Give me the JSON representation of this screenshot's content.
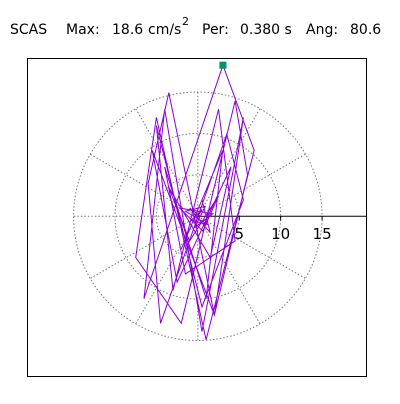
{
  "chart_data": {
    "type": "hodogram",
    "header": {
      "station": "SCAS",
      "max_label": "Max:",
      "max_value": "18.6",
      "max_unit": "cm/s",
      "max_unit_exp": "2",
      "period_label": "Per:",
      "period_value": "0.380 s",
      "angle_label": "Ang:",
      "angle_value": "80.6"
    },
    "xlim": [
      -20.5,
      20.3
    ],
    "ylim": [
      -19.4,
      19.1
    ],
    "rticks": [
      5,
      10,
      15
    ],
    "angle_grid": [
      30,
      60,
      90,
      120,
      150,
      180,
      210,
      240,
      270,
      300,
      330
    ],
    "marker_color": "#00946a",
    "series": [
      {
        "color": "#8a00d0",
        "x": [
          0,
          0.5,
          -0.8,
          1.2,
          -1.5,
          0.9,
          -0.4,
          1.8,
          -2.2,
          0.6,
          2.5,
          -1.0,
          -3.5,
          1.5,
          4.0,
          -2.5,
          -5.5,
          2.0,
          5.5,
          0.5,
          -4.0,
          -6.5,
          3.03,
          6.8,
          1.0,
          -5.0,
          -7.5,
          -2.0,
          4.5,
          6.0,
          2.0,
          -3.5,
          -6.0,
          -4.5,
          3.5,
          5.5,
          0.5,
          -5.0,
          -3.0,
          2.5,
          4.5,
          -1.5,
          -4.0,
          1.0,
          3.0,
          -2.0,
          0.5,
          1.5,
          -1.0,
          0.3
        ],
        "y": [
          0,
          0.8,
          -0.5,
          -1.0,
          0.6,
          1.2,
          -1.4,
          0.3,
          1.0,
          -1.8,
          2.5,
          -3.0,
          3.5,
          -5.0,
          6.0,
          -8.0,
          8.0,
          -12,
          12,
          -14,
          13,
          -10,
          18.35,
          8,
          -15,
          12,
          -5,
          -13,
          14,
          5,
          -12,
          15,
          4,
          -13,
          10,
          2,
          -11,
          11,
          -9,
          13,
          -3,
          -7,
          6,
          -10,
          8,
          -4,
          2,
          -2,
          1,
          0
        ]
      }
    ]
  }
}
